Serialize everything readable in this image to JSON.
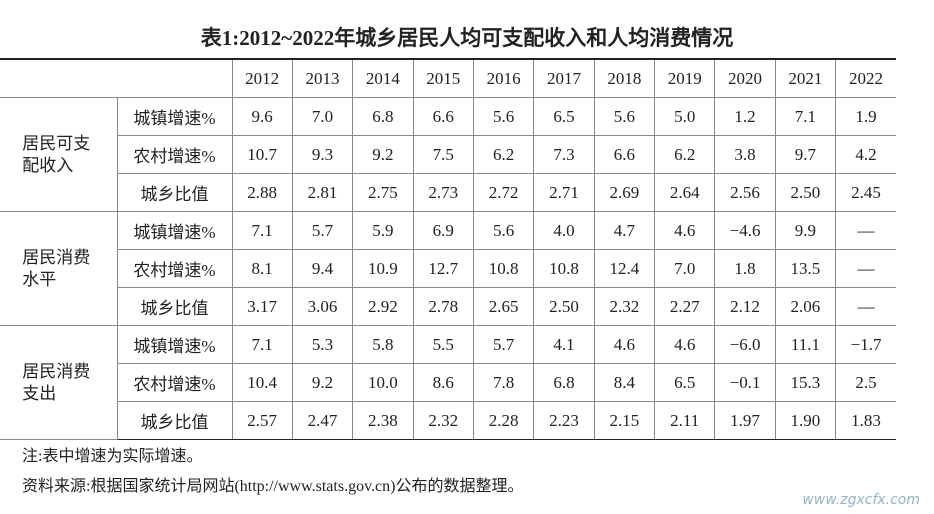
{
  "title": "表1:2012~2022年城乡居民人均可支配收入和人均消费情况",
  "table": {
    "header": [
      "2012",
      "2013",
      "2014",
      "2015",
      "2016",
      "2017",
      "2018",
      "2019",
      "2020",
      "2021",
      "2022"
    ],
    "groups": [
      {
        "label": "居民可支配收入",
        "rows": [
          {
            "label": "城镇增速%",
            "cells": [
              "9.6",
              "7.0",
              "6.8",
              "6.6",
              "5.6",
              "6.5",
              "5.6",
              "5.0",
              "1.2",
              "7.1",
              "1.9"
            ]
          },
          {
            "label": "农村增速%",
            "cells": [
              "10.7",
              "9.3",
              "9.2",
              "7.5",
              "6.2",
              "7.3",
              "6.6",
              "6.2",
              "3.8",
              "9.7",
              "4.2"
            ]
          },
          {
            "label": "城乡比值",
            "cells": [
              "2.88",
              "2.81",
              "2.75",
              "2.73",
              "2.72",
              "2.71",
              "2.69",
              "2.64",
              "2.56",
              "2.50",
              "2.45"
            ]
          }
        ]
      },
      {
        "label": "居民消费水平",
        "rows": [
          {
            "label": "城镇增速%",
            "cells": [
              "7.1",
              "5.7",
              "5.9",
              "6.9",
              "5.6",
              "4.0",
              "4.7",
              "4.6",
              "−4.6",
              "9.9",
              "—"
            ]
          },
          {
            "label": "农村增速%",
            "cells": [
              "8.1",
              "9.4",
              "10.9",
              "12.7",
              "10.8",
              "10.8",
              "12.4",
              "7.0",
              "1.8",
              "13.5",
              "—"
            ]
          },
          {
            "label": "城乡比值",
            "cells": [
              "3.17",
              "3.06",
              "2.92",
              "2.78",
              "2.65",
              "2.50",
              "2.32",
              "2.27",
              "2.12",
              "2.06",
              "—"
            ]
          }
        ]
      },
      {
        "label": "居民消费支出",
        "rows": [
          {
            "label": "城镇增速%",
            "cells": [
              "7.1",
              "5.3",
              "5.8",
              "5.5",
              "5.7",
              "4.1",
              "4.6",
              "4.6",
              "−6.0",
              "11.1",
              "−1.7"
            ]
          },
          {
            "label": "农村增速%",
            "cells": [
              "10.4",
              "9.2",
              "10.0",
              "8.6",
              "7.8",
              "6.8",
              "8.4",
              "6.5",
              "−0.1",
              "15.3",
              "2.5"
            ]
          },
          {
            "label": "城乡比值",
            "cells": [
              "2.57",
              "2.47",
              "2.38",
              "2.32",
              "2.28",
              "2.23",
              "2.15",
              "2.11",
              "1.97",
              "1.90",
              "1.83"
            ]
          }
        ]
      }
    ]
  },
  "notes": [
    "注:表中增速为实际增速。",
    "资料来源:根据国家统计局网站(http://www.stats.gov.cn)公布的数据整理。"
  ],
  "watermark": "www.zgxcfx.com"
}
